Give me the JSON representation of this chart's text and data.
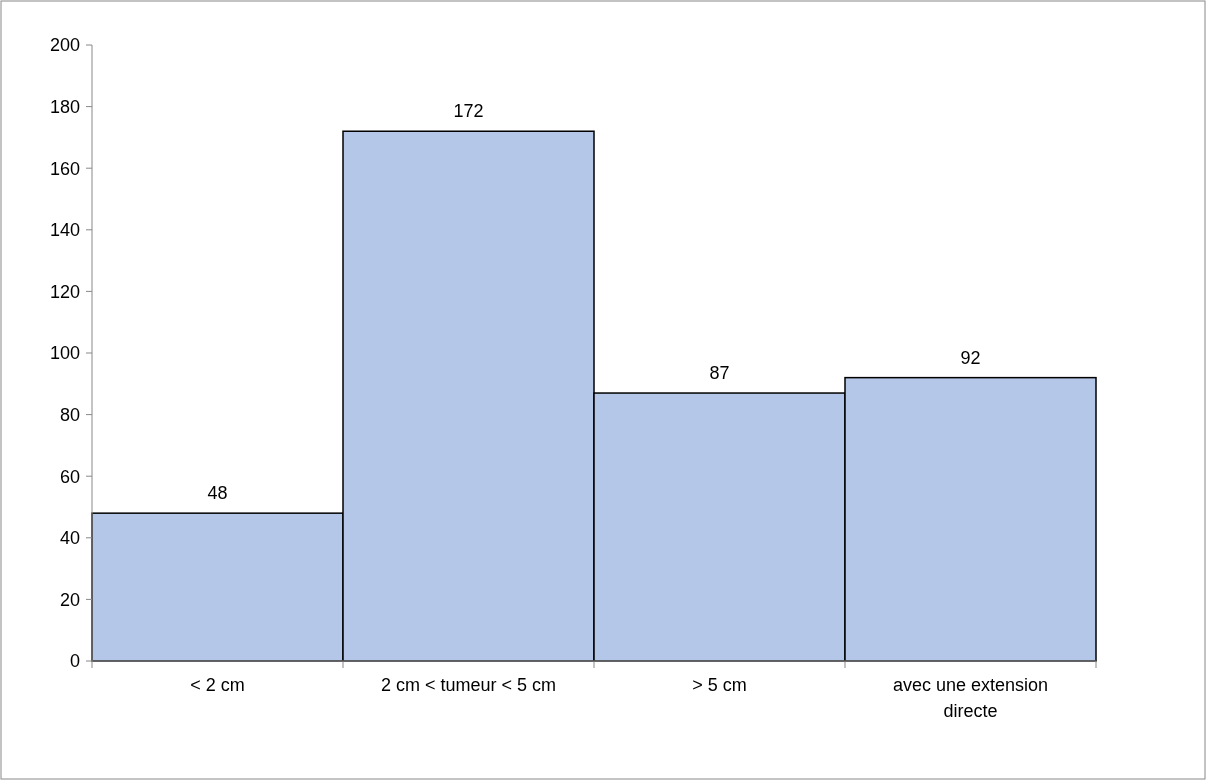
{
  "chart_data": {
    "type": "bar",
    "categories": [
      "< 2 cm",
      "2 cm < tumeur < 5 cm",
      "> 5 cm",
      "avec une extension directe"
    ],
    "values": [
      48,
      172,
      87,
      92
    ],
    "color": "#b4c7e9",
    "ylim": [
      0,
      200
    ],
    "yticks": [
      0,
      20,
      40,
      60,
      80,
      100,
      120,
      140,
      160,
      180,
      200
    ],
    "data_labels": true
  }
}
